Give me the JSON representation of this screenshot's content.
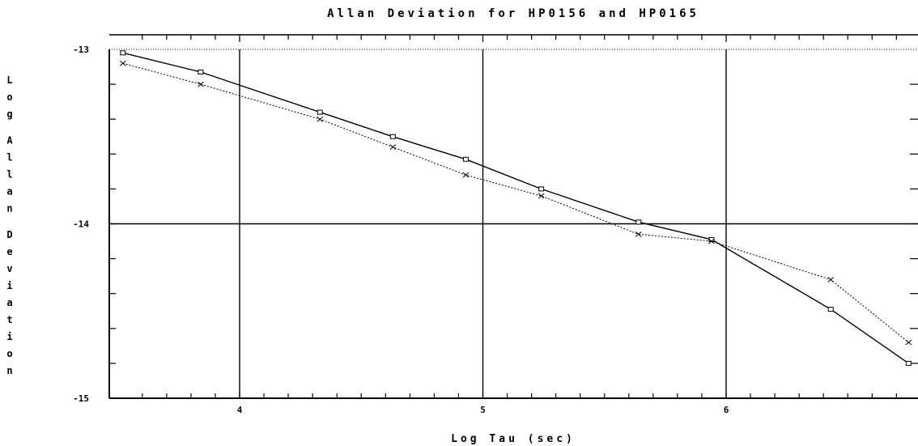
{
  "chart_data": {
    "type": "line",
    "title": "Allan Deviation for HP0156 and HP0165",
    "xlabel": "Log Tau (sec)",
    "ylabel": "Log Allan Deviation",
    "xlim": [
      3.55,
      6.8
    ],
    "ylim": [
      -15,
      -13
    ],
    "x_ticks": [
      4,
      5,
      6
    ],
    "y_ticks": [
      -13,
      -14,
      -15
    ],
    "grid": true,
    "series": [
      {
        "marker": "square",
        "line_style": "solid",
        "x": [
          3.52,
          3.84,
          4.33,
          4.63,
          4.93,
          5.24,
          5.64,
          5.94,
          6.43,
          6.75
        ],
        "y": [
          -13.02,
          -13.13,
          -13.36,
          -13.5,
          -13.63,
          -13.8,
          -13.99,
          -14.09,
          -14.49,
          -14.8
        ]
      },
      {
        "marker": "x",
        "line_style": "dotted",
        "x": [
          3.52,
          3.84,
          4.33,
          4.63,
          4.93,
          5.24,
          5.64,
          5.94,
          6.43,
          6.75
        ],
        "y": [
          -13.08,
          -13.2,
          -13.4,
          -13.56,
          -13.72,
          -13.84,
          -14.06,
          -14.1,
          -14.32,
          -14.68
        ]
      }
    ]
  }
}
